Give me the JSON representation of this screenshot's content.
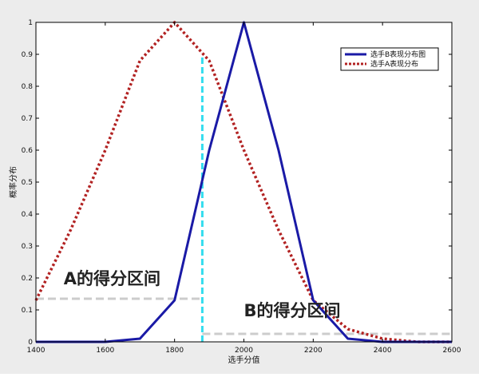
{
  "chart_data": {
    "type": "line",
    "xlabel": "选手分值",
    "ylabel": "概率分布",
    "xlim": [
      1400,
      2600
    ],
    "ylim": [
      0,
      1
    ],
    "xticks": [
      1400,
      1600,
      1800,
      2000,
      2200,
      2400,
      2600
    ],
    "yticks": [
      0,
      0.1,
      0.2,
      0.3,
      0.4,
      0.5,
      0.6,
      0.7,
      0.8,
      0.9,
      1
    ],
    "ytick_labels": [
      "0",
      "0.1",
      "0.2",
      "0.3",
      "0.4",
      "0.5",
      "0.6",
      "0.7",
      "0.8",
      "0.9",
      "1"
    ],
    "legend_position": "top-right",
    "grid": false,
    "series": [
      {
        "name": "选手B表现分布图",
        "style": "solid",
        "color": "#1a1aa6",
        "x": [
          1400,
          1500,
          1600,
          1700,
          1800,
          1900,
          2000,
          2100,
          2200,
          2300,
          2400,
          2500,
          2600
        ],
        "y": [
          0,
          0,
          0,
          0.01,
          0.13,
          0.6,
          1.0,
          0.6,
          0.13,
          0.01,
          0,
          0,
          0
        ]
      },
      {
        "name": "选手A表现分布",
        "style": "dotted",
        "color": "#b22222",
        "x": [
          1400,
          1500,
          1600,
          1700,
          1800,
          1900,
          2000,
          2100,
          2200,
          2300,
          2400,
          2500,
          2600
        ],
        "y": [
          0.13,
          0.35,
          0.6,
          0.88,
          1.0,
          0.88,
          0.6,
          0.35,
          0.13,
          0.04,
          0.01,
          0,
          0
        ]
      }
    ],
    "reference_lines": [
      {
        "kind": "vertical",
        "x": 1880,
        "y_from": 0,
        "y_to": 0.9,
        "color": "#33ddee"
      },
      {
        "kind": "horizontal",
        "y": 0.135,
        "x_from": 1400,
        "x_to": 1880,
        "color": "#cccccc"
      },
      {
        "kind": "horizontal",
        "y": 0.025,
        "x_from": 1880,
        "x_to": 2600,
        "color": "#cccccc"
      }
    ],
    "annotations": [
      {
        "text": "A的得分区间",
        "x": 1480,
        "y": 0.18
      },
      {
        "text": "B的得分区间",
        "x": 2000,
        "y": 0.08
      }
    ]
  }
}
